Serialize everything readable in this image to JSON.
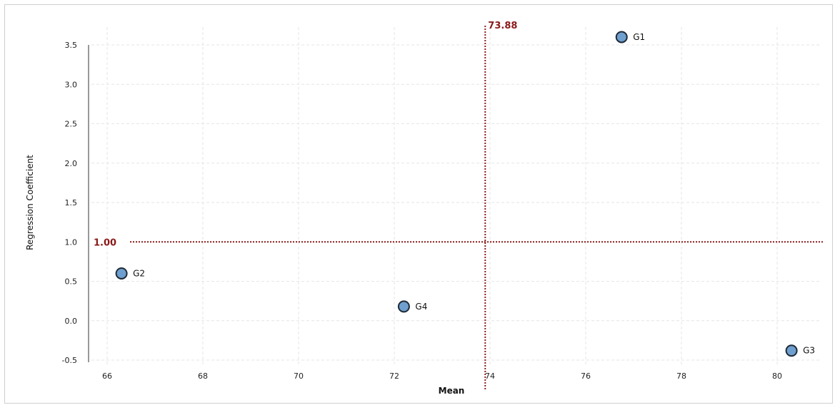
{
  "chart_data": {
    "type": "scatter",
    "title": "",
    "xlabel": "Mean",
    "ylabel": "Regression Coefficient",
    "xlim": [
      66,
      80
    ],
    "ylim": [
      -0.5,
      3.5
    ],
    "xticks": [
      "66",
      "68",
      "70",
      "72",
      "74",
      "76",
      "78",
      "80"
    ],
    "yticks": [
      "-0.5",
      "0.0",
      "0.5",
      "1.0",
      "1.5",
      "2.0",
      "2.5",
      "3.0",
      "3.5"
    ],
    "grid": true,
    "points": [
      {
        "label": "G1",
        "x": 76.75,
        "y": 3.6
      },
      {
        "label": "G2",
        "x": 66.3,
        "y": 0.6
      },
      {
        "label": "G3",
        "x": 80.3,
        "y": -0.38
      },
      {
        "label": "G4",
        "x": 72.2,
        "y": 0.18
      }
    ],
    "reference_lines": {
      "vertical": {
        "x": 73.9,
        "label": "73.88"
      },
      "horizontal": {
        "y": 1.0,
        "label": "1.00"
      }
    },
    "colors": {
      "point_fill": "#6f9fcf",
      "point_stroke": "#1f2a36",
      "reference": "#8b1a1a",
      "grid": "#e6e6e6"
    }
  }
}
